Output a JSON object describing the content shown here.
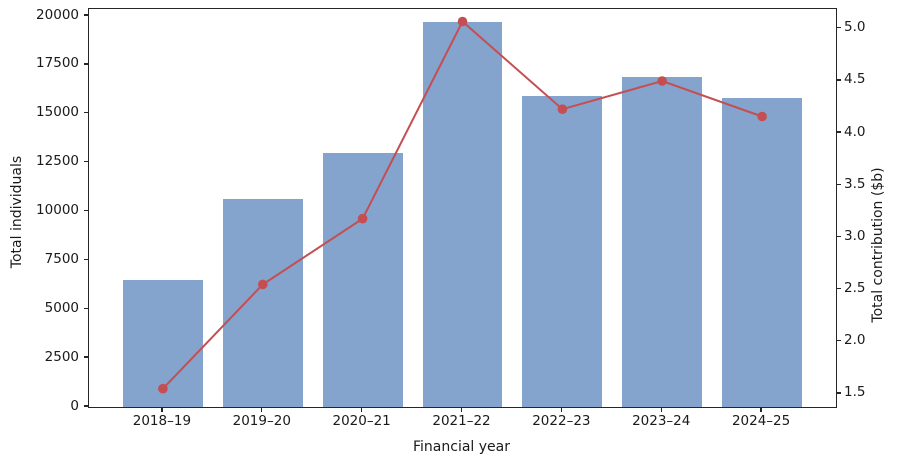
{
  "chart_data": {
    "type": "combo",
    "subtype": "bar+line, dual y-axis",
    "categories": [
      "2018–19",
      "2019–20",
      "2020–21",
      "2021–22",
      "2022–23",
      "2023–24",
      "2024–25"
    ],
    "series": [
      {
        "name": "Total individuals",
        "type": "bar",
        "axis": "left",
        "color": "#84a4cd",
        "values": [
          6500,
          10650,
          13000,
          19700,
          15900,
          16900,
          15800
        ]
      },
      {
        "name": "Total contribution ($b)",
        "type": "line",
        "axis": "right",
        "color": "#c44e52",
        "marker": "circle",
        "values": [
          1.55,
          2.55,
          3.18,
          5.07,
          4.23,
          4.5,
          4.16
        ]
      }
    ],
    "title": "",
    "xlabel": "Financial year",
    "ylabel_left": "Total individuals",
    "ylabel_right": "Total contribution ($b)",
    "ylim_left": [
      0,
      20360
    ],
    "ylim_right": [
      1.375,
      5.19
    ],
    "yticks_left": [
      0,
      2500,
      5000,
      7500,
      10000,
      12500,
      15000,
      17500,
      20000
    ],
    "yticks_right": [
      1.5,
      2.0,
      2.5,
      3.0,
      3.5,
      4.0,
      4.5,
      5.0
    ],
    "bar_rel_width": 0.8,
    "grid": false,
    "legend_position": "none",
    "spine_color": "#262626",
    "background": "#ffffff"
  }
}
